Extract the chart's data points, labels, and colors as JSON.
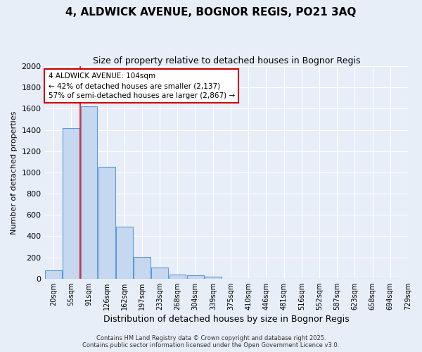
{
  "title_line1": "4, ALDWICK AVENUE, BOGNOR REGIS, PO21 3AQ",
  "title_line2": "Size of property relative to detached houses in Bognor Regis",
  "xlabel": "Distribution of detached houses by size in Bognor Regis",
  "ylabel": "Number of detached properties",
  "bar_values": [
    80,
    1420,
    1620,
    1055,
    490,
    205,
    105,
    40,
    30,
    20,
    0,
    0,
    0,
    0,
    0,
    0,
    0,
    0,
    0,
    0
  ],
  "bin_labels": [
    "20sqm",
    "55sqm",
    "91sqm",
    "126sqm",
    "162sqm",
    "197sqm",
    "233sqm",
    "268sqm",
    "304sqm",
    "339sqm",
    "375sqm",
    "410sqm",
    "446sqm",
    "481sqm",
    "516sqm",
    "552sqm",
    "587sqm",
    "623sqm",
    "658sqm",
    "694sqm",
    "729sqm"
  ],
  "bar_color": "#c5d8f0",
  "bar_edge_color": "#5b9bd5",
  "background_color": "#e8eef8",
  "grid_color": "#ffffff",
  "red_line_x": 2,
  "annotation_text": "4 ALDWICK AVENUE: 104sqm\n← 42% of detached houses are smaller (2,137)\n57% of semi-detached houses are larger (2,867) →",
  "annotation_box_color": "#ffffff",
  "annotation_box_edge": "#cc0000",
  "ylim": [
    0,
    2000
  ],
  "yticks": [
    0,
    200,
    400,
    600,
    800,
    1000,
    1200,
    1400,
    1600,
    1800,
    2000
  ],
  "footer1": "Contains HM Land Registry data © Crown copyright and database right 2025.",
  "footer2": "Contains public sector information licensed under the Open Government Licence v3.0."
}
